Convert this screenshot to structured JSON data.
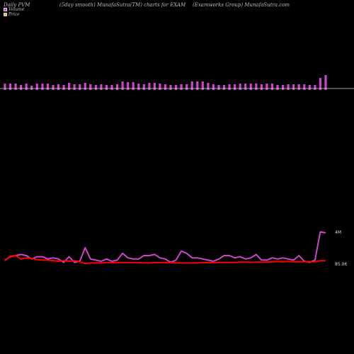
{
  "header": {
    "left": "Daily PVM",
    "middle": "(5day smooth) MunafaSutra(TM) charts for EXAM",
    "right": "(Examworks Group) MunafaSutra.com"
  },
  "legend": {
    "volume_label": "Volume",
    "price_label": "Price"
  },
  "colors": {
    "background": "#000000",
    "volume_bar": "#cc44cc",
    "volume_line": "#cc44cc",
    "price_line": "#ff0000",
    "baseline": "#dddddd"
  },
  "chart_data": {
    "type": "line",
    "title": "(5day smooth) MunafaSutra(TM) charts for EXAM",
    "volume_bars": [
      7,
      7,
      7,
      5,
      7,
      4,
      7,
      7,
      7,
      5,
      6,
      5,
      8,
      6,
      6,
      8,
      6,
      5,
      6,
      5,
      5,
      6,
      10,
      9,
      9,
      7,
      6,
      8,
      8,
      7,
      6,
      5,
      5,
      6,
      6,
      10,
      10,
      10,
      8,
      6,
      5,
      5,
      6,
      6,
      7,
      7,
      7,
      7,
      6,
      7,
      7,
      5,
      5,
      6,
      6,
      6,
      6,
      5,
      5,
      15,
      19
    ],
    "volume_series": {
      "name": "Volume",
      "end_label": "4M",
      "values": [
        6,
        9,
        10,
        11,
        10,
        7,
        9,
        9,
        7,
        8,
        7,
        4,
        9,
        4,
        5,
        17,
        7,
        6,
        5,
        7,
        5,
        6,
        12,
        8,
        7,
        7,
        10,
        10,
        11,
        8,
        7,
        4,
        6,
        14,
        12,
        8,
        8,
        7,
        6,
        5,
        7,
        10,
        10,
        8,
        9,
        7,
        8,
        11,
        6,
        6,
        8,
        7,
        8,
        7,
        6,
        10,
        5,
        4,
        6,
        31,
        30
      ]
    },
    "price_series": {
      "name": "Price",
      "end_label": "85.06",
      "values": [
        5.5,
        9.5,
        10,
        7,
        8,
        7.5,
        6.5,
        6,
        6,
        5.5,
        5,
        5.5,
        5,
        5.5,
        4.5,
        3,
        3.5,
        3.5,
        3.5,
        3.8,
        3.8,
        3.8,
        3.8,
        3.8,
        3.8,
        3.8,
        3.5,
        3.5,
        3.8,
        3.8,
        3.8,
        3.8,
        3.5,
        3.5,
        3.5,
        3.5,
        3.5,
        3.8,
        3.8,
        3.8,
        4,
        4,
        4,
        4,
        4.2,
        4.2,
        4,
        4.2,
        4.2,
        4.2,
        4.5,
        4.8,
        4.5,
        4.8,
        4.5,
        4.5,
        4.5,
        4.5,
        4.5,
        5.5,
        5.5
      ]
    }
  }
}
